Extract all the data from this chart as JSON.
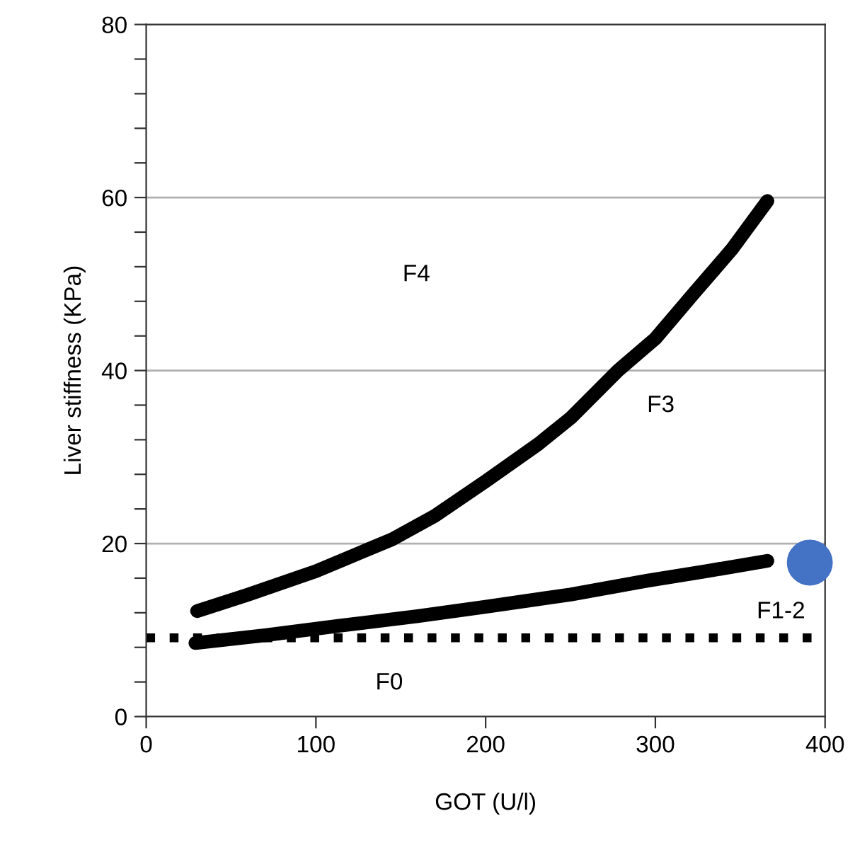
{
  "chart_data": {
    "type": "line",
    "xlabel": "GOT (U/l)",
    "ylabel": "Liver stiffness (KPa)",
    "xlim": [
      0,
      400
    ],
    "xticks": [
      0,
      100,
      200,
      300,
      400
    ],
    "ylim": [
      0,
      80
    ],
    "yticks": [
      0,
      {
        "value": 4,
        "label": null
      },
      {
        "value": 8,
        "label": null
      },
      {
        "value": 12,
        "label": null
      },
      {
        "value": 16,
        "label": null
      },
      20,
      {
        "value": 24,
        "label": null
      },
      {
        "value": 28,
        "label": null
      },
      {
        "value": 32,
        "label": null
      },
      {
        "value": 36,
        "label": null
      },
      40,
      {
        "value": 44,
        "label": null
      },
      {
        "value": 48,
        "label": null
      },
      {
        "value": 52,
        "label": null
      },
      {
        "value": 56,
        "label": null
      },
      60,
      {
        "value": 64,
        "label": null
      },
      {
        "value": 68,
        "label": null
      },
      {
        "value": 72,
        "label": null
      },
      {
        "value": 76,
        "label": null
      },
      80
    ],
    "grid": "y",
    "legend": false,
    "marker": "none",
    "line_style": "solid",
    "series": [
      {
        "color": "#000000",
        "x": [
          30,
          60,
          100,
          145,
          170,
          200,
          231,
          250,
          278,
          300,
          323,
          345,
          366
        ],
        "values": [
          12.2,
          14.1,
          16.8,
          20.5,
          23.2,
          27.2,
          31.5,
          34.5,
          40,
          43.7,
          49,
          54,
          59.6
        ]
      },
      {
        "color": "#000000",
        "x": [
          29,
          70,
          114,
          160,
          200,
          250,
          295,
          330,
          366
        ],
        "values": [
          8.5,
          9.4,
          10.5,
          11.6,
          12.7,
          14.1,
          15.7,
          16.8,
          18
        ]
      },
      {
        "type": "scatter",
        "color": "#4472c4",
        "marker": "circle",
        "x": [
          391
        ],
        "values": [
          17.8
        ]
      }
    ],
    "ref_lines": [
      {
        "axis": "y",
        "value": 9.1,
        "color": "#000000",
        "line_style": "dotted"
      }
    ],
    "annotations": [
      "F4",
      "F3",
      "F1-2",
      "F0"
    ]
  }
}
